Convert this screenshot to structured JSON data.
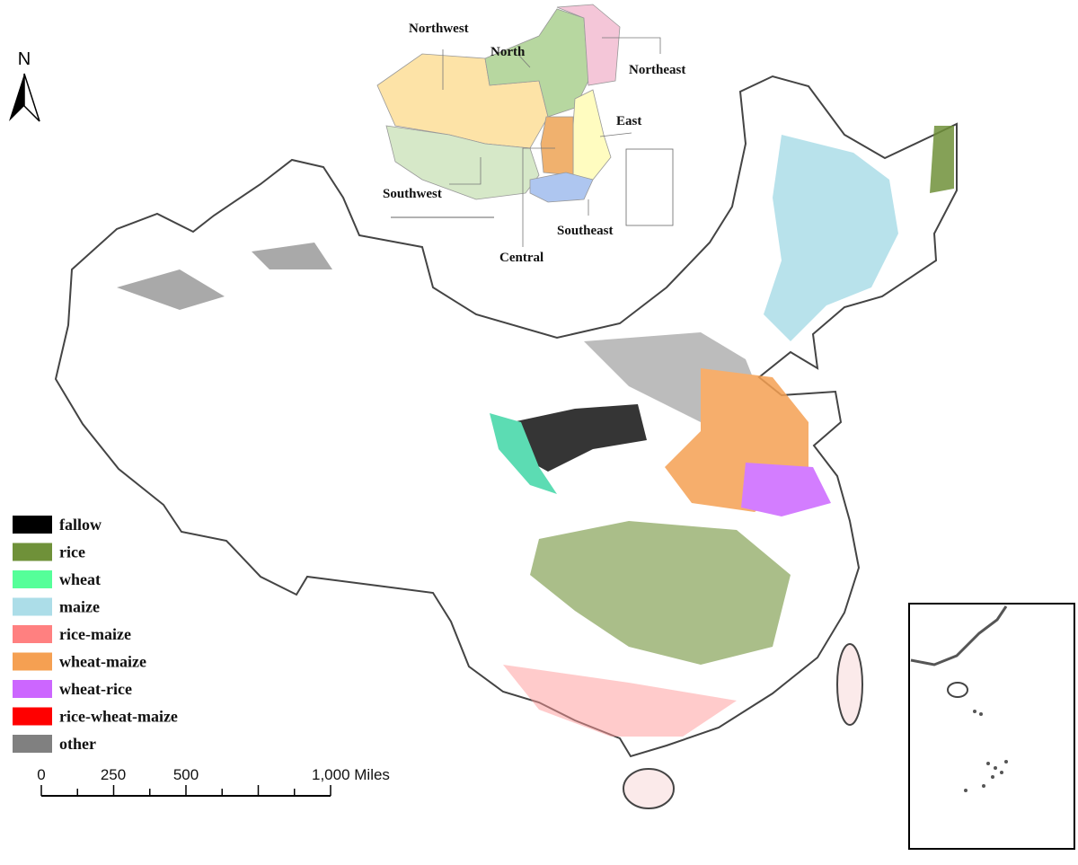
{
  "north_arrow": {
    "label": "N"
  },
  "overview_map": {
    "regions": [
      {
        "label": "Northwest",
        "color": "#fde3a7"
      },
      {
        "label": "North",
        "color": "#b7d7a0"
      },
      {
        "label": "Northeast",
        "color": "#f4c6d8"
      },
      {
        "label": "East",
        "color": "#fffcc0"
      },
      {
        "label": "Southwest",
        "color": "#d6e8c8"
      },
      {
        "label": "Central",
        "color": "#f0b16e"
      },
      {
        "label": "Southeast",
        "color": "#aec6f0"
      }
    ]
  },
  "legend": {
    "items": [
      {
        "label": "fallow",
        "color": "#000000"
      },
      {
        "label": "rice",
        "color": "#6f9139"
      },
      {
        "label": "wheat",
        "color": "#55ff99"
      },
      {
        "label": "maize",
        "color": "#acdde8"
      },
      {
        "label": "rice-maize",
        "color": "#ff8080"
      },
      {
        "label": "wheat-maize",
        "color": "#f5a052"
      },
      {
        "label": "wheat-rice",
        "color": "#cc66ff"
      },
      {
        "label": "rice-wheat-maize",
        "color": "#ff0000"
      },
      {
        "label": "other",
        "color": "#808080"
      }
    ]
  },
  "scale_bar": {
    "labels": [
      "0",
      "250",
      "500",
      "1,000 Miles"
    ]
  }
}
